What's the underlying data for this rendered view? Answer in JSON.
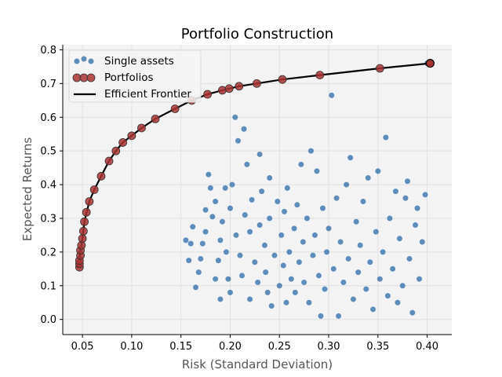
{
  "chart_data": {
    "type": "scatter",
    "title": "Portfolio Construction",
    "xlabel": "Risk (Standard Deviation)",
    "ylabel": "Expected Returns",
    "xlim": [
      0.03,
      0.425
    ],
    "ylim": [
      -0.045,
      0.815
    ],
    "xticks": [
      "0.05",
      "0.10",
      "0.15",
      "0.20",
      "0.25",
      "0.30",
      "0.35",
      "0.40"
    ],
    "yticks": [
      "0.0",
      "0.1",
      "0.2",
      "0.3",
      "0.4",
      "0.5",
      "0.6",
      "0.7",
      "0.8"
    ],
    "grid": true,
    "legend_position": "top-left",
    "colors": {
      "single_assets": "#3a73ad",
      "portfolios": "#a83232",
      "frontier": "#000000",
      "plot_bg": "#f3f3f3",
      "grid": "#e0e0e0"
    },
    "series": [
      {
        "name": "Single assets",
        "kind": "scatter",
        "points": [
          [
            0.155,
            0.235
          ],
          [
            0.158,
            0.175
          ],
          [
            0.16,
            0.225
          ],
          [
            0.162,
            0.275
          ],
          [
            0.165,
            0.095
          ],
          [
            0.168,
            0.14
          ],
          [
            0.17,
            0.18
          ],
          [
            0.172,
            0.225
          ],
          [
            0.175,
            0.26
          ],
          [
            0.175,
            0.325
          ],
          [
            0.178,
            0.43
          ],
          [
            0.18,
            0.39
          ],
          [
            0.182,
            0.305
          ],
          [
            0.185,
            0.35
          ],
          [
            0.185,
            0.12
          ],
          [
            0.188,
            0.175
          ],
          [
            0.19,
            0.06
          ],
          [
            0.19,
            0.235
          ],
          [
            0.192,
            0.29
          ],
          [
            0.195,
            0.39
          ],
          [
            0.196,
            0.2
          ],
          [
            0.198,
            0.12
          ],
          [
            0.2,
            0.08
          ],
          [
            0.2,
            0.33
          ],
          [
            0.202,
            0.4
          ],
          [
            0.205,
            0.6
          ],
          [
            0.206,
            0.25
          ],
          [
            0.208,
            0.53
          ],
          [
            0.21,
            0.19
          ],
          [
            0.212,
            0.13
          ],
          [
            0.214,
            0.565
          ],
          [
            0.215,
            0.31
          ],
          [
            0.217,
            0.46
          ],
          [
            0.22,
            0.26
          ],
          [
            0.22,
            0.06
          ],
          [
            0.222,
            0.355
          ],
          [
            0.225,
            0.17
          ],
          [
            0.228,
            0.11
          ],
          [
            0.23,
            0.28
          ],
          [
            0.23,
            0.49
          ],
          [
            0.232,
            0.38
          ],
          [
            0.235,
            0.22
          ],
          [
            0.236,
            0.14
          ],
          [
            0.238,
            0.08
          ],
          [
            0.24,
            0.42
          ],
          [
            0.24,
            0.3
          ],
          [
            0.242,
            0.04
          ],
          [
            0.245,
            0.19
          ],
          [
            0.248,
            0.35
          ],
          [
            0.25,
            0.1
          ],
          [
            0.252,
            0.25
          ],
          [
            0.254,
            0.16
          ],
          [
            0.255,
            0.32
          ],
          [
            0.257,
            0.05
          ],
          [
            0.258,
            0.39
          ],
          [
            0.26,
            0.2
          ],
          [
            0.262,
            0.12
          ],
          [
            0.265,
            0.27
          ],
          [
            0.266,
            0.08
          ],
          [
            0.268,
            0.34
          ],
          [
            0.27,
            0.17
          ],
          [
            0.272,
            0.46
          ],
          [
            0.274,
            0.23
          ],
          [
            0.275,
            0.11
          ],
          [
            0.278,
            0.3
          ],
          [
            0.28,
            0.05
          ],
          [
            0.282,
            0.5
          ],
          [
            0.284,
            0.19
          ],
          [
            0.286,
            0.25
          ],
          [
            0.288,
            0.44
          ],
          [
            0.29,
            0.13
          ],
          [
            0.292,
            0.01
          ],
          [
            0.294,
            0.33
          ],
          [
            0.296,
            0.09
          ],
          [
            0.298,
            0.2
          ],
          [
            0.3,
            0.27
          ],
          [
            0.303,
            0.665
          ],
          [
            0.305,
            0.15
          ],
          [
            0.308,
            0.36
          ],
          [
            0.31,
            0.01
          ],
          [
            0.312,
            0.23
          ],
          [
            0.315,
            0.11
          ],
          [
            0.318,
            0.4
          ],
          [
            0.32,
            0.18
          ],
          [
            0.322,
            0.48
          ],
          [
            0.325,
            0.06
          ],
          [
            0.328,
            0.29
          ],
          [
            0.33,
            0.14
          ],
          [
            0.332,
            0.22
          ],
          [
            0.335,
            0.35
          ],
          [
            0.338,
            0.09
          ],
          [
            0.34,
            0.42
          ],
          [
            0.342,
            0.17
          ],
          [
            0.345,
            0.03
          ],
          [
            0.348,
            0.26
          ],
          [
            0.35,
            0.44
          ],
          [
            0.352,
            0.12
          ],
          [
            0.355,
            0.2
          ],
          [
            0.358,
            0.54
          ],
          [
            0.36,
            0.07
          ],
          [
            0.362,
            0.3
          ],
          [
            0.365,
            0.15
          ],
          [
            0.368,
            0.38
          ],
          [
            0.37,
            0.05
          ],
          [
            0.372,
            0.24
          ],
          [
            0.375,
            0.1
          ],
          [
            0.378,
            0.36
          ],
          [
            0.38,
            0.41
          ],
          [
            0.382,
            0.18
          ],
          [
            0.385,
            0.02
          ],
          [
            0.388,
            0.28
          ],
          [
            0.39,
            0.33
          ],
          [
            0.392,
            0.12
          ],
          [
            0.395,
            0.23
          ],
          [
            0.398,
            0.37
          ],
          [
            0.4,
            0.76
          ]
        ]
      },
      {
        "name": "Portfolios",
        "kind": "scatter",
        "points": [
          [
            0.047,
            0.155
          ],
          [
            0.047,
            0.165
          ],
          [
            0.047,
            0.175
          ],
          [
            0.048,
            0.19
          ],
          [
            0.048,
            0.205
          ],
          [
            0.049,
            0.22
          ],
          [
            0.05,
            0.24
          ],
          [
            0.051,
            0.262
          ],
          [
            0.052,
            0.29
          ],
          [
            0.054,
            0.318
          ],
          [
            0.057,
            0.35
          ],
          [
            0.062,
            0.385
          ],
          [
            0.069,
            0.425
          ],
          [
            0.077,
            0.47
          ],
          [
            0.084,
            0.5
          ],
          [
            0.091,
            0.525
          ],
          [
            0.1,
            0.545
          ],
          [
            0.11,
            0.568
          ],
          [
            0.124,
            0.595
          ],
          [
            0.144,
            0.625
          ],
          [
            0.161,
            0.65
          ],
          [
            0.177,
            0.668
          ],
          [
            0.192,
            0.68
          ],
          [
            0.199,
            0.685
          ],
          [
            0.209,
            0.692
          ],
          [
            0.227,
            0.7
          ],
          [
            0.253,
            0.712
          ],
          [
            0.291,
            0.725
          ],
          [
            0.352,
            0.745
          ],
          [
            0.403,
            0.76
          ]
        ]
      },
      {
        "name": "Efficient Frontier",
        "kind": "line",
        "points": [
          [
            0.047,
            0.155
          ],
          [
            0.047,
            0.175
          ],
          [
            0.048,
            0.205
          ],
          [
            0.05,
            0.24
          ],
          [
            0.052,
            0.29
          ],
          [
            0.057,
            0.35
          ],
          [
            0.062,
            0.385
          ],
          [
            0.069,
            0.425
          ],
          [
            0.077,
            0.47
          ],
          [
            0.084,
            0.5
          ],
          [
            0.091,
            0.525
          ],
          [
            0.1,
            0.545
          ],
          [
            0.11,
            0.568
          ],
          [
            0.124,
            0.595
          ],
          [
            0.144,
            0.625
          ],
          [
            0.161,
            0.65
          ],
          [
            0.177,
            0.668
          ],
          [
            0.192,
            0.68
          ],
          [
            0.209,
            0.692
          ],
          [
            0.227,
            0.7
          ],
          [
            0.253,
            0.712
          ],
          [
            0.291,
            0.725
          ],
          [
            0.352,
            0.745
          ],
          [
            0.403,
            0.76
          ]
        ]
      }
    ]
  }
}
